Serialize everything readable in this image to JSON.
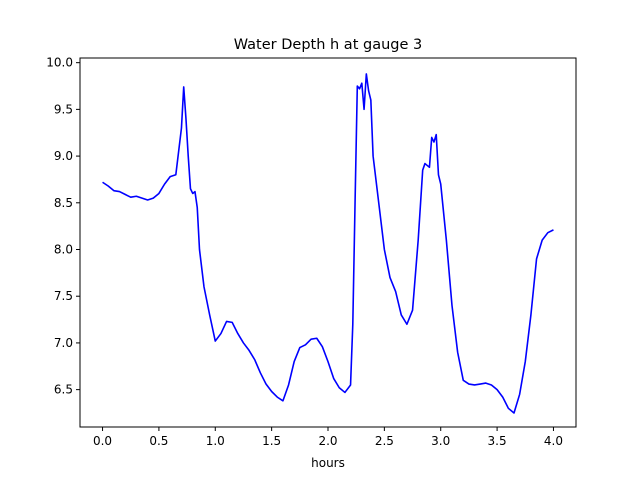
{
  "chart_data": {
    "type": "line",
    "title": "Water Depth h at gauge 3",
    "xlabel": "hours",
    "ylabel": "",
    "xlim": [
      -0.2,
      4.2
    ],
    "ylim": [
      6.1,
      10.05
    ],
    "xticks": [
      0.0,
      0.5,
      1.0,
      1.5,
      2.0,
      2.5,
      3.0,
      3.5,
      4.0
    ],
    "xtick_labels": [
      "0.0",
      "0.5",
      "1.0",
      "1.5",
      "2.0",
      "2.5",
      "3.0",
      "3.5",
      "4.0"
    ],
    "yticks": [
      6.5,
      7.0,
      7.5,
      8.0,
      8.5,
      9.0,
      9.5,
      10.0
    ],
    "ytick_labels": [
      "6.5",
      "7.0",
      "7.5",
      "8.0",
      "8.5",
      "9.0",
      "9.5",
      "10.0"
    ],
    "grid": false,
    "series": [
      {
        "color": "#0000ff",
        "x": [
          0.0,
          0.05,
          0.1,
          0.15,
          0.2,
          0.25,
          0.3,
          0.35,
          0.4,
          0.45,
          0.5,
          0.55,
          0.6,
          0.65,
          0.7,
          0.72,
          0.74,
          0.76,
          0.78,
          0.8,
          0.82,
          0.84,
          0.86,
          0.9,
          0.95,
          1.0,
          1.05,
          1.1,
          1.15,
          1.2,
          1.25,
          1.3,
          1.35,
          1.4,
          1.45,
          1.5,
          1.55,
          1.6,
          1.65,
          1.7,
          1.75,
          1.8,
          1.85,
          1.9,
          1.95,
          2.0,
          2.05,
          2.1,
          2.15,
          2.2,
          2.22,
          2.24,
          2.26,
          2.28,
          2.3,
          2.32,
          2.34,
          2.36,
          2.38,
          2.4,
          2.45,
          2.5,
          2.55,
          2.6,
          2.65,
          2.7,
          2.75,
          2.8,
          2.84,
          2.86,
          2.88,
          2.9,
          2.92,
          2.94,
          2.96,
          2.98,
          3.0,
          3.05,
          3.1,
          3.15,
          3.2,
          3.25,
          3.3,
          3.35,
          3.4,
          3.45,
          3.5,
          3.55,
          3.6,
          3.65,
          3.7,
          3.75,
          3.8,
          3.85,
          3.9,
          3.95,
          4.0
        ],
        "y": [
          8.72,
          8.68,
          8.63,
          8.62,
          8.59,
          8.56,
          8.57,
          8.55,
          8.53,
          8.55,
          8.6,
          8.7,
          8.78,
          8.8,
          9.3,
          9.74,
          9.4,
          9.0,
          8.65,
          8.6,
          8.62,
          8.45,
          8.0,
          7.6,
          7.3,
          7.02,
          7.1,
          7.23,
          7.22,
          7.1,
          7.0,
          6.92,
          6.82,
          6.68,
          6.56,
          6.48,
          6.42,
          6.38,
          6.55,
          6.8,
          6.95,
          6.98,
          7.04,
          7.05,
          6.96,
          6.8,
          6.62,
          6.52,
          6.47,
          6.55,
          7.2,
          8.5,
          9.75,
          9.72,
          9.78,
          9.5,
          9.88,
          9.7,
          9.6,
          9.0,
          8.5,
          8.0,
          7.7,
          7.55,
          7.3,
          7.2,
          7.35,
          8.1,
          8.85,
          8.92,
          8.9,
          8.88,
          9.2,
          9.15,
          9.23,
          8.8,
          8.7,
          8.1,
          7.4,
          6.9,
          6.6,
          6.56,
          6.55,
          6.56,
          6.57,
          6.55,
          6.5,
          6.42,
          6.3,
          6.25,
          6.45,
          6.8,
          7.3,
          7.9,
          8.1,
          8.18,
          8.21
        ]
      }
    ]
  }
}
